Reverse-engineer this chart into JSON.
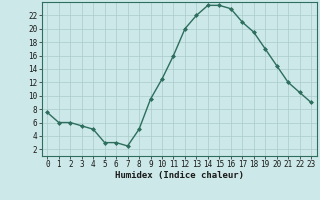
{
  "x": [
    0,
    1,
    2,
    3,
    4,
    5,
    6,
    7,
    8,
    9,
    10,
    11,
    12,
    13,
    14,
    15,
    16,
    17,
    18,
    19,
    20,
    21,
    22,
    23
  ],
  "y": [
    7.5,
    6.0,
    6.0,
    5.5,
    5.0,
    3.0,
    3.0,
    2.5,
    5.0,
    9.5,
    12.5,
    16.0,
    20.0,
    22.0,
    23.5,
    23.5,
    23.0,
    21.0,
    19.5,
    17.0,
    14.5,
    12.0,
    10.5,
    9.0
  ],
  "line_color": "#2d6e5e",
  "marker": "D",
  "marker_size": 2.0,
  "bg_color": "#cce8e8",
  "grid_color": "#aacccc",
  "xlabel": "Humidex (Indice chaleur)",
  "xlim": [
    -0.5,
    23.5
  ],
  "ylim": [
    1,
    24
  ],
  "yticks": [
    2,
    4,
    6,
    8,
    10,
    12,
    14,
    16,
    18,
    20,
    22
  ],
  "xticks": [
    0,
    1,
    2,
    3,
    4,
    5,
    6,
    7,
    8,
    9,
    10,
    11,
    12,
    13,
    14,
    15,
    16,
    17,
    18,
    19,
    20,
    21,
    22,
    23
  ],
  "tick_fontsize": 5.5,
  "xlabel_fontsize": 6.5,
  "line_width": 1.0
}
